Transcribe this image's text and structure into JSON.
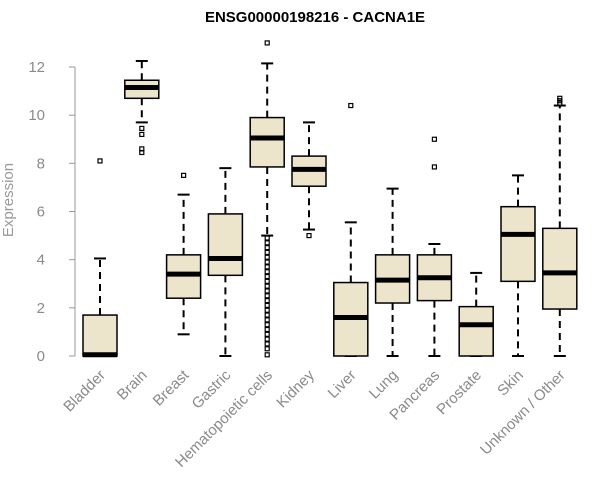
{
  "chart_data": {
    "type": "boxplot",
    "title": "ENSG00000198216 - CACNA1E",
    "xlabel": "",
    "ylabel": "Expression",
    "ylim": [
      0,
      12.5
    ],
    "yticks": [
      0,
      2,
      4,
      6,
      8,
      10,
      12
    ],
    "box_fill": "#ede5cb",
    "box_stroke": "#000000",
    "axis_color": "#9a9a9a",
    "categories": [
      "Bladder",
      "Brain",
      "Breast",
      "Gastric",
      "Hematopoietic cells",
      "Kidney",
      "Liver",
      "Lung",
      "Pancreas",
      "Prostate",
      "Skin",
      "Unknown / Other"
    ],
    "boxes": [
      {
        "category": "Bladder",
        "whisker_low": 0,
        "q1": 0,
        "median": 0.05,
        "q3": 1.7,
        "whisker_high": 4.05,
        "outliers": [
          8.1
        ]
      },
      {
        "category": "Brain",
        "whisker_low": 9.7,
        "q1": 10.7,
        "median": 11.15,
        "q3": 11.45,
        "whisker_high": 12.25,
        "outliers": [
          9.45,
          9.2,
          8.6,
          8.45
        ]
      },
      {
        "category": "Breast",
        "whisker_low": 0.9,
        "q1": 2.4,
        "median": 3.4,
        "q3": 4.2,
        "whisker_high": 6.7,
        "outliers": [
          7.5
        ]
      },
      {
        "category": "Gastric",
        "whisker_low": 0,
        "q1": 3.35,
        "median": 4.05,
        "q3": 5.9,
        "whisker_high": 7.8,
        "outliers": []
      },
      {
        "category": "Hematopoietic cells",
        "whisker_low": 5.0,
        "q1": 7.85,
        "median": 9.05,
        "q3": 9.9,
        "whisker_high": 12.15,
        "outliers": [
          13.0,
          4.9,
          4.7,
          4.5,
          4.3,
          4.1,
          3.9,
          3.7,
          3.5,
          3.3,
          3.1,
          2.9,
          2.7,
          2.5,
          2.3,
          2.1,
          1.9,
          1.7,
          1.5,
          1.3,
          1.1,
          0.9,
          0.7,
          0.5,
          0.3,
          0.05
        ]
      },
      {
        "category": "Kidney",
        "whisker_low": 5.25,
        "q1": 7.05,
        "median": 7.75,
        "q3": 8.3,
        "whisker_high": 9.7,
        "outliers": [
          5.0
        ]
      },
      {
        "category": "Liver",
        "whisker_low": 0,
        "q1": 0,
        "median": 1.6,
        "q3": 3.05,
        "whisker_high": 5.55,
        "outliers": [
          10.4
        ]
      },
      {
        "category": "Lung",
        "whisker_low": 0,
        "q1": 2.2,
        "median": 3.15,
        "q3": 4.2,
        "whisker_high": 6.95,
        "outliers": []
      },
      {
        "category": "Pancreas",
        "whisker_low": 0,
        "q1": 2.3,
        "median": 3.25,
        "q3": 4.2,
        "whisker_high": 4.65,
        "outliers": [
          7.85,
          9.0
        ]
      },
      {
        "category": "Prostate",
        "whisker_low": 0,
        "q1": 0,
        "median": 1.3,
        "q3": 2.05,
        "whisker_high": 3.45,
        "outliers": []
      },
      {
        "category": "Skin",
        "whisker_low": 0,
        "q1": 3.1,
        "median": 5.05,
        "q3": 6.2,
        "whisker_high": 7.5,
        "outliers": []
      },
      {
        "category": "Unknown / Other",
        "whisker_low": 0,
        "q1": 1.95,
        "median": 3.45,
        "q3": 5.3,
        "whisker_high": 10.4,
        "outliers": [
          10.5,
          10.6,
          10.7
        ]
      }
    ]
  }
}
